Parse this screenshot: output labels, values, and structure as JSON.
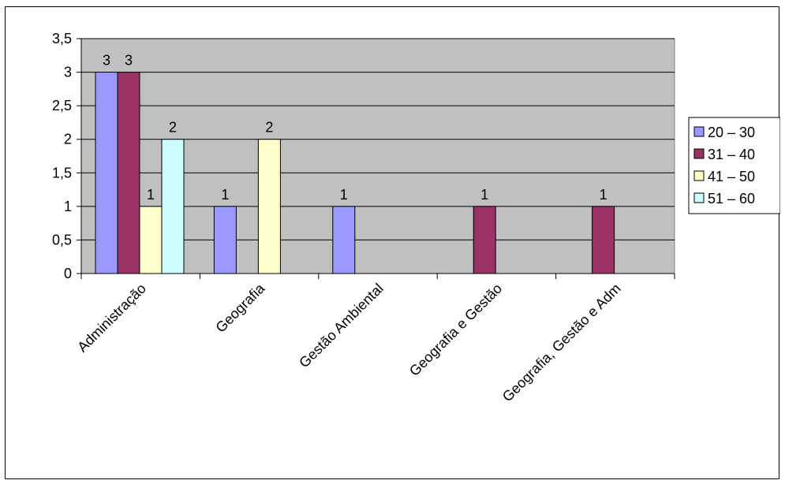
{
  "chart_data": {
    "type": "bar",
    "categories": [
      "Administração",
      "Geografia",
      "Gestão Ambiental",
      "Geografia e Gestão",
      "Geografia, Gestão e Adm"
    ],
    "series": [
      {
        "name": "20 – 30",
        "color": "#9999FF",
        "values": [
          3,
          1,
          1,
          null,
          null
        ]
      },
      {
        "name": "31 – 40",
        "color": "#993366",
        "values": [
          3,
          null,
          null,
          1,
          1
        ]
      },
      {
        "name": "41 – 50",
        "color": "#FFFFCC",
        "values": [
          1,
          2,
          null,
          null,
          null
        ]
      },
      {
        "name": "51 – 60",
        "color": "#CCFFFF",
        "values": [
          2,
          null,
          null,
          null,
          null
        ]
      }
    ],
    "ylim": [
      0,
      3.5
    ],
    "yticks": [
      "0",
      "0,5",
      "1",
      "1,5",
      "2",
      "2,5",
      "3",
      "3,5"
    ],
    "grid": true,
    "plot_background": "#C0C0C0",
    "legend_position": "right",
    "title": "",
    "xlabel": "",
    "ylabel": ""
  }
}
